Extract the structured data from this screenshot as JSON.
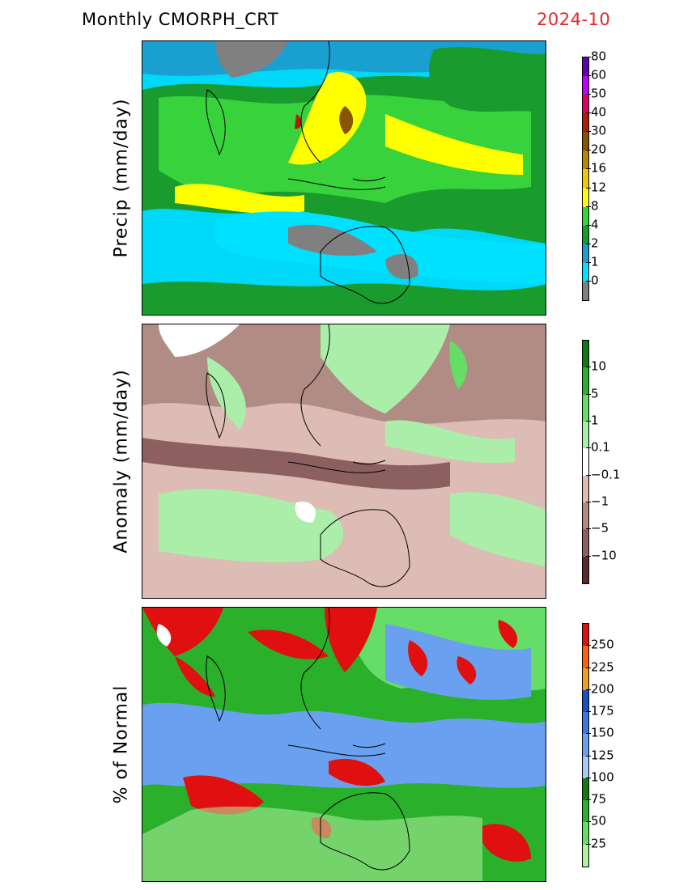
{
  "header": {
    "title": "Monthly  CMORPH_CRT",
    "period": "2024-10"
  },
  "panels": [
    {
      "id": "precip",
      "ylabel": "Precip (mm/day)",
      "colorbar": {
        "colors": [
          "#808080",
          "#00e0ff",
          "#1aa0d0",
          "#1a9b2e",
          "#37d23c",
          "#ffff00",
          "#f0c800",
          "#b08a00",
          "#8a5500",
          "#b02000",
          "#e00060",
          "#c000ff",
          "#6000b0"
        ],
        "labels": [
          "0",
          "1",
          "2",
          "4",
          "8",
          "12",
          "16",
          "20",
          "30",
          "40",
          "50",
          "60",
          "80"
        ]
      }
    },
    {
      "id": "anomaly",
      "ylabel": "Anomaly (mm/day)",
      "colorbar": {
        "colors": [
          "#5a2c2c",
          "#8c6060",
          "#b08c84",
          "#dcbcb4",
          "#ffffff",
          "#aaeeaa",
          "#66dd66",
          "#2bb02b",
          "#117a11"
        ],
        "labels": [
          "−10",
          "−5",
          "−1",
          "−0.1",
          "0.1",
          "1",
          "5",
          "10"
        ]
      }
    },
    {
      "id": "percent",
      "ylabel": "% of Normal",
      "colorbar": {
        "colors": [
          "#b0f0a0",
          "#66dd66",
          "#2bb02b",
          "#117a11",
          "#a8c8f8",
          "#6aa0f0",
          "#3a78e0",
          "#1a50c0",
          "#f0a020",
          "#ff6010",
          "#e01010"
        ],
        "labels": [
          "25",
          "50",
          "75",
          "100",
          "125",
          "150",
          "175",
          "200",
          "225",
          "250"
        ]
      }
    }
  ]
}
